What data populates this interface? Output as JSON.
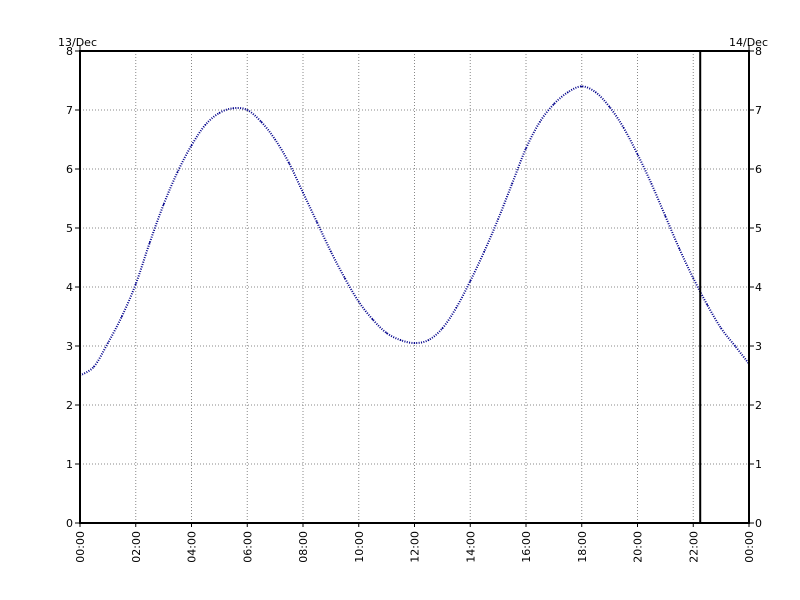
{
  "chart_data": {
    "type": "line",
    "date_left": "13/Dec",
    "date_right": "14/Dec",
    "x_tick_labels": [
      "00:00",
      "02:00",
      "04:00",
      "06:00",
      "08:00",
      "10:00",
      "12:00",
      "14:00",
      "16:00",
      "18:00",
      "20:00",
      "22:00",
      "00:00"
    ],
    "y_tick_labels": [
      "0",
      "1",
      "2",
      "3",
      "4",
      "5",
      "6",
      "7",
      "8"
    ],
    "xlim_hours": [
      0,
      24
    ],
    "ylim": [
      0,
      8
    ],
    "grid": true,
    "marker_line_hour": 22.25,
    "series": [
      {
        "x_hours": [
          0,
          0.5,
          1,
          1.5,
          2,
          2.5,
          3,
          3.5,
          4,
          4.5,
          5,
          5.5,
          6,
          6.5,
          7,
          7.5,
          8,
          8.5,
          9,
          9.5,
          10,
          10.5,
          11,
          11.5,
          12,
          12.5,
          13,
          13.5,
          14,
          14.5,
          15,
          15.5,
          16,
          16.5,
          17,
          17.5,
          18,
          18.5,
          19,
          19.5,
          20,
          20.5,
          21,
          21.5,
          22,
          22.5,
          23,
          23.5,
          24
        ],
        "values": [
          2.5,
          2.65,
          3.05,
          3.5,
          4.05,
          4.75,
          5.4,
          5.95,
          6.4,
          6.75,
          6.95,
          7.03,
          7.0,
          6.8,
          6.5,
          6.1,
          5.6,
          5.1,
          4.6,
          4.15,
          3.75,
          3.45,
          3.22,
          3.1,
          3.05,
          3.1,
          3.3,
          3.65,
          4.1,
          4.6,
          5.15,
          5.75,
          6.35,
          6.8,
          7.1,
          7.3,
          7.4,
          7.3,
          7.05,
          6.7,
          6.25,
          5.75,
          5.2,
          4.65,
          4.15,
          3.7,
          3.3,
          3.0,
          2.7
        ],
        "color": "#00008B"
      }
    ]
  }
}
